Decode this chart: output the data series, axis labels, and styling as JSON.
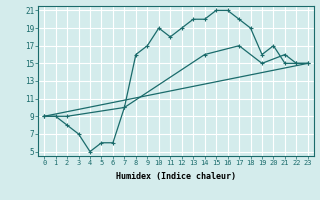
{
  "xlabel": "Humidex (Indice chaleur)",
  "background_color": "#d4ecec",
  "grid_color": "#ffffff",
  "line_color": "#1a6b6b",
  "xlim": [
    -0.5,
    23.5
  ],
  "ylim": [
    4.5,
    21.5
  ],
  "xticks": [
    0,
    1,
    2,
    3,
    4,
    5,
    6,
    7,
    8,
    9,
    10,
    11,
    12,
    13,
    14,
    15,
    16,
    17,
    18,
    19,
    20,
    21,
    22,
    23
  ],
  "yticks": [
    5,
    7,
    9,
    11,
    13,
    15,
    17,
    19,
    21
  ],
  "line1_x": [
    0,
    1,
    2,
    3,
    4,
    5,
    6,
    7,
    8,
    9,
    10,
    11,
    12,
    13,
    14,
    15,
    16,
    17,
    18,
    19,
    20,
    21,
    22,
    23
  ],
  "line1_y": [
    9,
    9,
    8,
    7,
    5,
    6,
    6,
    10,
    16,
    17,
    19,
    18,
    19,
    20,
    20,
    21,
    21,
    20,
    19,
    16,
    17,
    15,
    15,
    15
  ],
  "line2_x": [
    0,
    2,
    7,
    14,
    17,
    19,
    21,
    22,
    23
  ],
  "line2_y": [
    9,
    9,
    10,
    16,
    17,
    15,
    16,
    15,
    15
  ],
  "line3_x": [
    0,
    23
  ],
  "line3_y": [
    9,
    15
  ]
}
